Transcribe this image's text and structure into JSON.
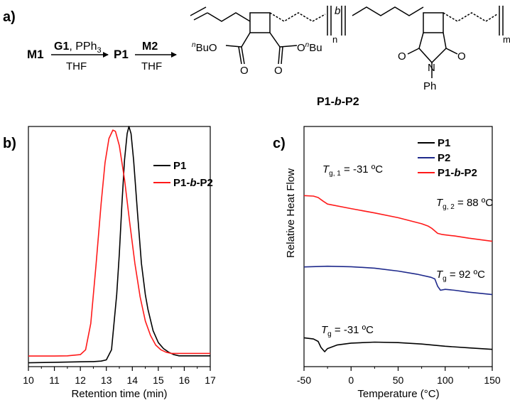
{
  "panel_a": {
    "label": "a)",
    "scheme": {
      "m1": "M1",
      "g1": "G1",
      "pph3": ", PPh",
      "pph3_sub": "3",
      "thf1": "THF",
      "p1": "P1",
      "m2": "M2",
      "thf2": "THF"
    },
    "polymer": {
      "n": "n",
      "m": "m",
      "b": "b",
      "bu_left_sup": "n",
      "bu_left": "BuO",
      "bu_right_sup": "n",
      "bu_right": "Bu",
      "o1": "O",
      "o2": "O",
      "o3": "O",
      "o4": "O",
      "o5": "O",
      "o6": "O",
      "n_atom": "N",
      "ph": "Ph",
      "name_pre": "P1-",
      "name_b": "b",
      "name_post": "-P2"
    }
  },
  "chart_data": [
    {
      "panel": "b)",
      "type": "line",
      "xlabel": "Retention time (min)",
      "ylabel": "",
      "xlim": [
        10,
        17
      ],
      "xticks": [
        "10",
        "11",
        "12",
        "13",
        "14",
        "15",
        "16",
        "17"
      ],
      "legend_position": "top-right",
      "series": [
        {
          "name": "P1",
          "color": "#000000",
          "points": [
            [
              10.0,
              0.016
            ],
            [
              11.0,
              0.018
            ],
            [
              12.0,
              0.02
            ],
            [
              12.5,
              0.021
            ],
            [
              12.8,
              0.023
            ],
            [
              13.0,
              0.028
            ],
            [
              13.2,
              0.07
            ],
            [
              13.4,
              0.3
            ],
            [
              13.5,
              0.47
            ],
            [
              13.6,
              0.68
            ],
            [
              13.7,
              0.86
            ],
            [
              13.8,
              0.97
            ],
            [
              13.87,
              1.0
            ],
            [
              13.95,
              0.97
            ],
            [
              14.05,
              0.86
            ],
            [
              14.2,
              0.64
            ],
            [
              14.35,
              0.43
            ],
            [
              14.5,
              0.3
            ],
            [
              14.6,
              0.24
            ],
            [
              14.8,
              0.15
            ],
            [
              15.0,
              0.1
            ],
            [
              15.2,
              0.075
            ],
            [
              15.4,
              0.06
            ],
            [
              15.6,
              0.05
            ],
            [
              15.8,
              0.045
            ],
            [
              16.0,
              0.045
            ],
            [
              16.5,
              0.045
            ],
            [
              17.0,
              0.045
            ]
          ]
        },
        {
          "name": "P1-b-P2",
          "name_parts": [
            "P1-",
            "b",
            "-P2"
          ],
          "color": "#ff1a1a",
          "points": [
            [
              10.0,
              0.044
            ],
            [
              11.0,
              0.044
            ],
            [
              11.5,
              0.045
            ],
            [
              12.0,
              0.05
            ],
            [
              12.2,
              0.07
            ],
            [
              12.4,
              0.18
            ],
            [
              12.6,
              0.42
            ],
            [
              12.8,
              0.68
            ],
            [
              12.95,
              0.85
            ],
            [
              13.1,
              0.95
            ],
            [
              13.25,
              0.985
            ],
            [
              13.35,
              0.98
            ],
            [
              13.5,
              0.92
            ],
            [
              13.7,
              0.78
            ],
            [
              13.9,
              0.6
            ],
            [
              14.1,
              0.43
            ],
            [
              14.3,
              0.29
            ],
            [
              14.5,
              0.19
            ],
            [
              14.7,
              0.13
            ],
            [
              14.9,
              0.09
            ],
            [
              15.1,
              0.07
            ],
            [
              15.3,
              0.06
            ],
            [
              15.5,
              0.055
            ],
            [
              16.0,
              0.055
            ],
            [
              17.0,
              0.055
            ]
          ]
        }
      ]
    },
    {
      "panel": "c)",
      "type": "line",
      "xlabel": "Temperature (°C)",
      "ylabel": "Relative Heat Flow",
      "xlim": [
        -50,
        150
      ],
      "xticks": [
        "-50",
        "0",
        "50",
        "100",
        "150"
      ],
      "legend_position": "top-right",
      "annotations": {
        "p1": {
          "sym": "T",
          "sub": "g",
          "text": " = -31 ºC"
        },
        "p2": {
          "sym": "T",
          "sub": "g",
          "text": " = 92 ºC"
        },
        "blk1": {
          "sym": "T",
          "sub": "g, 1",
          "text": " = -31 ºC"
        },
        "blk2": {
          "sym": "T",
          "sub": "g, 2",
          "text": " = 88 ºC"
        }
      },
      "series": [
        {
          "name": "P1",
          "color": "#000000",
          "points": [
            [
              -50,
              0.12
            ],
            [
              -40,
              0.115
            ],
            [
              -35,
              0.105
            ],
            [
              -32,
              0.08
            ],
            [
              -28,
              0.062
            ],
            [
              -25,
              0.075
            ],
            [
              -15,
              0.09
            ],
            [
              0,
              0.098
            ],
            [
              25,
              0.102
            ],
            [
              50,
              0.1
            ],
            [
              75,
              0.094
            ],
            [
              100,
              0.085
            ],
            [
              125,
              0.078
            ],
            [
              150,
              0.072
            ]
          ]
        },
        {
          "name": "P2",
          "color": "#1f2a8c",
          "points": [
            [
              -50,
              0.415
            ],
            [
              -25,
              0.418
            ],
            [
              0,
              0.416
            ],
            [
              25,
              0.41
            ],
            [
              50,
              0.398
            ],
            [
              70,
              0.385
            ],
            [
              85,
              0.372
            ],
            [
              89,
              0.365
            ],
            [
              92,
              0.335
            ],
            [
              95,
              0.318
            ],
            [
              100,
              0.322
            ],
            [
              110,
              0.318
            ],
            [
              125,
              0.31
            ],
            [
              150,
              0.3
            ]
          ]
        },
        {
          "name": "P1-b-P2",
          "name_parts": [
            "P1-",
            "b",
            "-P2"
          ],
          "color": "#ff1a1a",
          "points": [
            [
              -50,
              0.712
            ],
            [
              -40,
              0.71
            ],
            [
              -35,
              0.704
            ],
            [
              -30,
              0.69
            ],
            [
              -25,
              0.677
            ],
            [
              0,
              0.658
            ],
            [
              25,
              0.64
            ],
            [
              50,
              0.62
            ],
            [
              75,
              0.595
            ],
            [
              82,
              0.585
            ],
            [
              86,
              0.575
            ],
            [
              92,
              0.555
            ],
            [
              97,
              0.55
            ],
            [
              110,
              0.544
            ],
            [
              125,
              0.535
            ],
            [
              150,
              0.522
            ]
          ]
        }
      ]
    }
  ]
}
